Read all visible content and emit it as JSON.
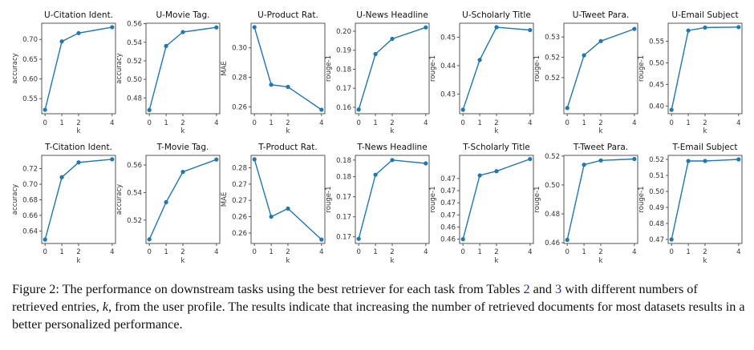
{
  "caption": {
    "prefix": "Figure 2: The performance on downstream tasks using the best retriever for each task from Tables ",
    "ref1": "2",
    "mid1": " and ",
    "ref2": "3",
    "mid2": " with different numbers of retrieved entries, ",
    "k_symbol": "k",
    "suffix": ", from the user profile. The results indicate that increasing the number of retrieved documents for most datasets results in a better personalized performance."
  },
  "chart_data": [
    {
      "type": "line",
      "title": "U-Citation Ident.",
      "xlabel": "k",
      "ylabel": "accuracy",
      "x": [
        0,
        1,
        2,
        4
      ],
      "xticks": [
        "0",
        "1",
        "2",
        "4"
      ],
      "values": [
        0.522,
        0.695,
        0.716,
        0.731
      ],
      "yticks": [
        0.55,
        0.6,
        0.65,
        0.7
      ],
      "ytick_labels": [
        "0.55",
        "0.60",
        "0.65",
        "0.70"
      ],
      "ylim": [
        0.512,
        0.741
      ],
      "color": "#1f77b4"
    },
    {
      "type": "line",
      "title": "U-Movie Tag.",
      "xlabel": "k",
      "ylabel": "accuracy",
      "x": [
        0,
        1,
        2,
        4
      ],
      "xticks": [
        "0",
        "1",
        "2",
        "4"
      ],
      "values": [
        0.467,
        0.536,
        0.551,
        0.556
      ],
      "yticks": [
        0.48,
        0.5,
        0.52,
        0.54,
        0.56
      ],
      "ytick_labels": [
        "0.48",
        "0.50",
        "0.52",
        "0.54",
        "0.56"
      ],
      "ylim": [
        0.463,
        0.5605
      ],
      "color": "#1f77b4"
    },
    {
      "type": "line",
      "title": "U-Product Rat.",
      "xlabel": "k",
      "ylabel": "MAE",
      "x": [
        0,
        1,
        2,
        4
      ],
      "xticks": [
        "0",
        "1",
        "2",
        "4"
      ],
      "values": [
        0.314,
        0.275,
        0.2735,
        0.258
      ],
      "yticks": [
        0.26,
        0.28,
        0.3
      ],
      "ytick_labels": [
        "0.26",
        "0.28",
        "0.30"
      ],
      "ylim": [
        0.2553,
        0.3167
      ],
      "color": "#1f77b4"
    },
    {
      "type": "line",
      "title": "U-News Headline",
      "xlabel": "k",
      "ylabel": "rouge-1",
      "x": [
        0,
        1,
        2,
        4
      ],
      "xticks": [
        "0",
        "1",
        "2",
        "4"
      ],
      "values": [
        0.1588,
        0.188,
        0.196,
        0.202
      ],
      "yticks": [
        0.16,
        0.17,
        0.18,
        0.19,
        0.2
      ],
      "ytick_labels": [
        "0.16",
        "0.17",
        "0.18",
        "0.19",
        "0.20"
      ],
      "ylim": [
        0.1566,
        0.2042
      ],
      "color": "#1f77b4"
    },
    {
      "type": "line",
      "title": "U-Scholarly Title",
      "xlabel": "k",
      "ylabel": "rouge-1",
      "x": [
        0,
        1,
        2,
        4
      ],
      "xticks": [
        "0",
        "1",
        "2",
        "4"
      ],
      "values": [
        0.4245,
        0.442,
        0.4535,
        0.4525
      ],
      "yticks": [
        0.43,
        0.44,
        0.45
      ],
      "ytick_labels": [
        "0.43",
        "0.44",
        "0.45"
      ],
      "ylim": [
        0.4231,
        0.4549
      ],
      "color": "#1f77b4"
    },
    {
      "type": "line",
      "title": "U-Tweet Para.",
      "xlabel": "k",
      "ylabel": "rouge-1",
      "x": [
        0,
        1,
        2,
        4
      ],
      "xticks": [
        "0",
        "1",
        "2",
        "4"
      ],
      "values": [
        0.5125,
        0.5255,
        0.529,
        0.532
      ],
      "yticks": [
        0.52,
        0.525,
        0.53
      ],
      "ytick_labels": [
        "0.52",
        "0.52",
        "0.53"
      ],
      "ylim": [
        0.5111,
        0.5334
      ],
      "color": "#1f77b4"
    },
    {
      "type": "line",
      "title": "U-Email Subject",
      "xlabel": "k",
      "ylabel": "rouge-1",
      "x": [
        0,
        1,
        2,
        4
      ],
      "xticks": [
        "0",
        "1",
        "2",
        "4"
      ],
      "values": [
        0.391,
        0.575,
        0.582,
        0.583
      ],
      "yticks": [
        0.4,
        0.45,
        0.5,
        0.55
      ],
      "ytick_labels": [
        "0.40",
        "0.45",
        "0.50",
        "0.55"
      ],
      "ylim": [
        0.382,
        0.592
      ],
      "color": "#1f77b4"
    },
    {
      "type": "line",
      "title": "T-Citation Ident.",
      "xlabel": "k",
      "ylabel": "accuracy",
      "x": [
        0,
        1,
        2,
        4
      ],
      "xticks": [
        "0",
        "1",
        "2",
        "4"
      ],
      "values": [
        0.629,
        0.709,
        0.728,
        0.732
      ],
      "yticks": [
        0.64,
        0.66,
        0.68,
        0.7,
        0.72
      ],
      "ytick_labels": [
        "0.64",
        "0.66",
        "0.68",
        "0.70",
        "0.72"
      ],
      "ylim": [
        0.624,
        0.737
      ],
      "color": "#1f77b4"
    },
    {
      "type": "line",
      "title": "T-Movie Tag.",
      "xlabel": "k",
      "ylabel": "accuracy",
      "x": [
        0,
        1,
        2,
        4
      ],
      "xticks": [
        "0",
        "1",
        "2",
        "4"
      ],
      "values": [
        0.506,
        0.533,
        0.555,
        0.564
      ],
      "yticks": [
        0.52,
        0.54,
        0.56
      ],
      "ytick_labels": [
        "0.52",
        "0.54",
        "0.56"
      ],
      "ylim": [
        0.503,
        0.567
      ],
      "color": "#1f77b4"
    },
    {
      "type": "line",
      "title": "T-Product Rat.",
      "xlabel": "k",
      "ylabel": "MAE",
      "x": [
        0,
        1,
        2,
        4
      ],
      "xticks": [
        "0",
        "1",
        "2",
        "4"
      ],
      "values": [
        0.2826,
        0.265,
        0.2675,
        0.258
      ],
      "yticks": [
        0.26,
        0.265,
        0.27,
        0.275,
        0.28
      ],
      "ytick_labels": [
        "0.26",
        "0.26",
        "0.27",
        "0.27",
        "0.28"
      ],
      "ylim": [
        0.2568,
        0.2838
      ],
      "color": "#1f77b4"
    },
    {
      "type": "line",
      "title": "T-News Headline",
      "xlabel": "k",
      "ylabel": "rouge-1",
      "x": [
        0,
        1,
        2,
        4
      ],
      "xticks": [
        "0",
        "1",
        "2",
        "4"
      ],
      "values": [
        0.1682,
        0.1778,
        0.18,
        0.1795
      ],
      "yticks": [
        0.1685,
        0.1715,
        0.1745,
        0.1775,
        0.18
      ],
      "ytick_labels": [
        "0.17",
        "0.17",
        "0.17",
        "0.18",
        "0.18"
      ],
      "ylim": [
        0.1675,
        0.1807
      ],
      "color": "#1f77b4"
    },
    {
      "type": "line",
      "title": "T-Scholarly Title",
      "xlabel": "k",
      "ylabel": "rouge-1",
      "x": [
        0,
        1,
        2,
        4
      ],
      "xticks": [
        "0",
        "1",
        "2",
        "4"
      ],
      "values": [
        0.46,
        0.4705,
        0.4712,
        0.4732
      ],
      "yticks": [
        0.46,
        0.462,
        0.464,
        0.466,
        0.468,
        0.47
      ],
      "ytick_labels": [
        "0.46",
        "0.46",
        "0.47",
        "0.47",
        "0.47",
        "0.47"
      ],
      "ylim": [
        0.4593,
        0.4738
      ],
      "color": "#1f77b4"
    },
    {
      "type": "line",
      "title": "T-Tweet Para.",
      "xlabel": "k",
      "ylabel": "rouge-1",
      "x": [
        0,
        1,
        2,
        4
      ],
      "xticks": [
        "0",
        "1",
        "2",
        "4"
      ],
      "values": [
        0.462,
        0.514,
        0.517,
        0.518
      ],
      "yticks": [
        0.46,
        0.48,
        0.5,
        0.52
      ],
      "ytick_labels": [
        "0.46",
        "0.48",
        "0.50",
        "0.52"
      ],
      "ylim": [
        0.4595,
        0.5205
      ],
      "color": "#1f77b4"
    },
    {
      "type": "line",
      "title": "T-Email Subject",
      "xlabel": "k",
      "ylabel": "rouge-1",
      "x": [
        0,
        1,
        2,
        4
      ],
      "xticks": [
        "0",
        "1",
        "2",
        "4"
      ],
      "values": [
        0.47,
        0.519,
        0.519,
        0.52
      ],
      "yticks": [
        0.47,
        0.48,
        0.49,
        0.5,
        0.51,
        0.52
      ],
      "ytick_labels": [
        "0.47",
        "0.48",
        "0.49",
        "0.50",
        "0.51",
        "0.52"
      ],
      "ylim": [
        0.4675,
        0.5225
      ],
      "color": "#1f77b4"
    }
  ]
}
